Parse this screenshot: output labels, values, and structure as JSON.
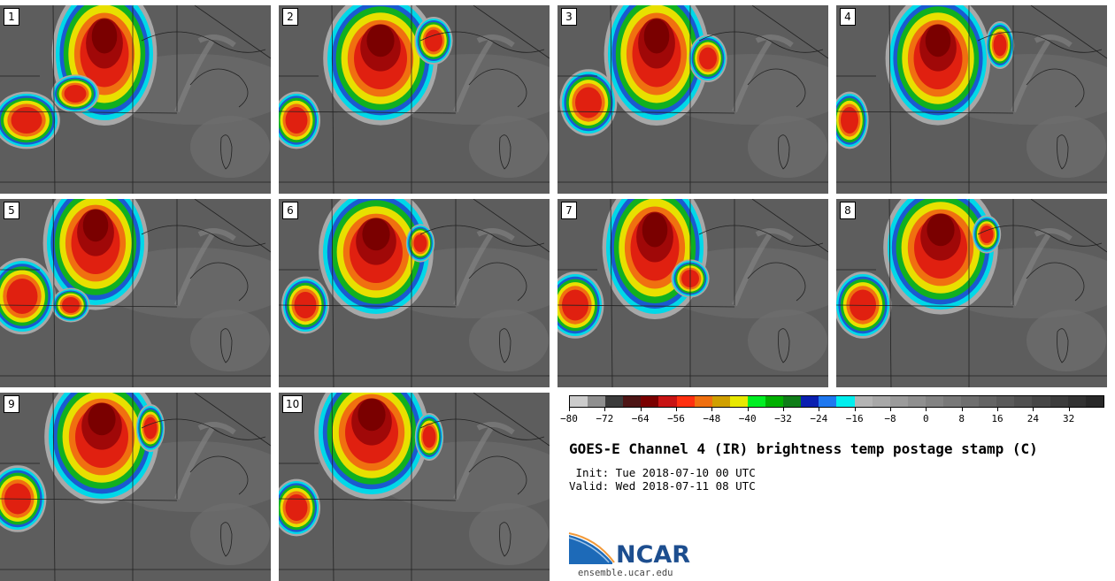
{
  "panels": [
    {
      "label": "1"
    },
    {
      "label": "2"
    },
    {
      "label": "3"
    },
    {
      "label": "4"
    },
    {
      "label": "5"
    },
    {
      "label": "6"
    },
    {
      "label": "7"
    },
    {
      "label": "8"
    },
    {
      "label": "9"
    },
    {
      "label": "10"
    }
  ],
  "colorbar": {
    "colors": [
      "#cccccc",
      "#8f8f8f",
      "#3b3b3b",
      "#4d1515",
      "#7a0000",
      "#c81414",
      "#ff3010",
      "#f07010",
      "#d0a000",
      "#e8e800",
      "#00ee22",
      "#00b000",
      "#0f7d18",
      "#0a1fb0",
      "#1e78f0",
      "#00eeee",
      "#b4b4b4",
      "#a8a8a8",
      "#9b9b9b",
      "#8f8f8f",
      "#838383",
      "#787878",
      "#6e6e6e",
      "#646464",
      "#5a5a5a",
      "#505050",
      "#464646",
      "#3c3c3c",
      "#323232",
      "#282828"
    ],
    "tick_labels": [
      "−80",
      "−72",
      "−64",
      "−56",
      "−48",
      "−40",
      "−32",
      "−24",
      "−16",
      "−8",
      "0",
      "8",
      "16",
      "24",
      "32"
    ]
  },
  "title": "GOES-E Channel 4 (IR) brightness temp postage stamp (C)",
  "init": " Init: Tue 2018-07-10 00 UTC",
  "valid": "Valid: Wed 2018-07-11 08 UTC",
  "logo": {
    "name": "NCAR",
    "url": "ensemble.ucar.edu"
  }
}
